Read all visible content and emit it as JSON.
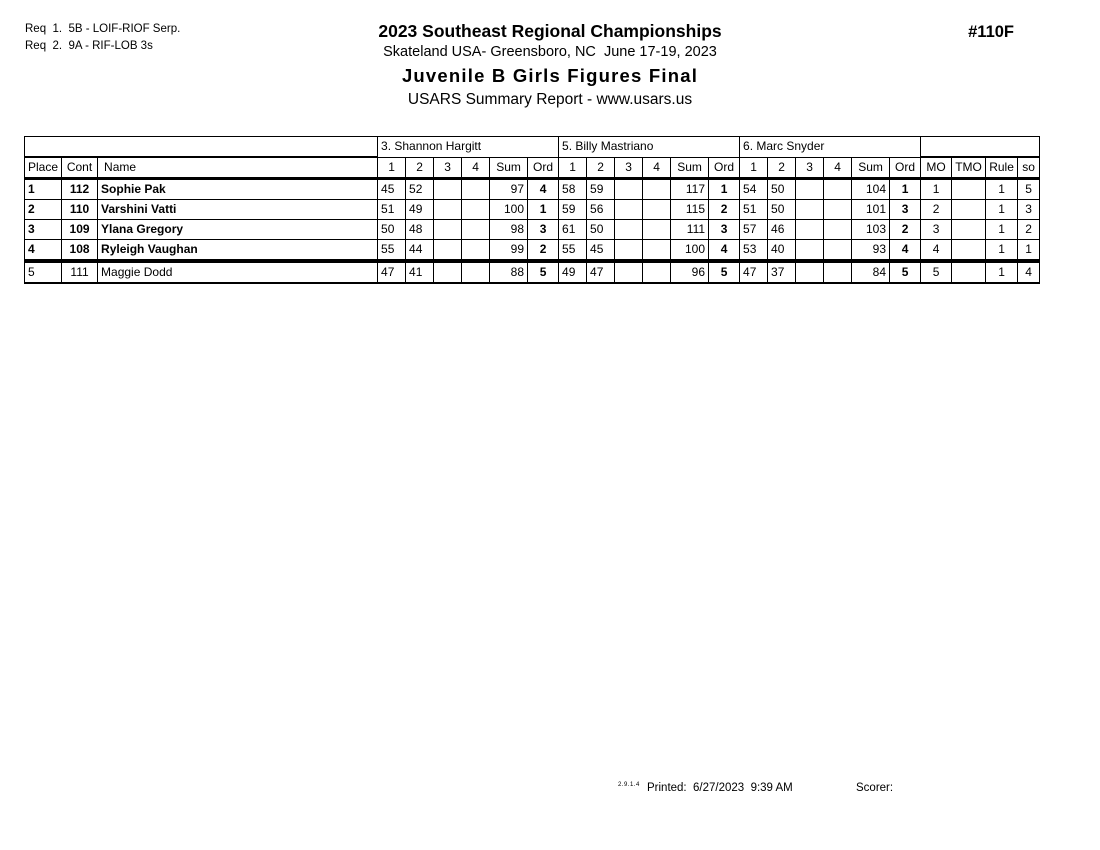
{
  "page": {
    "req_lines": [
      "Req  1.  5B - LOIF-RIOF Serp.",
      "Req  2.  9A - RIF-LOB 3s"
    ],
    "title": "2023 Southeast Regional Championships",
    "venue_date": "Skateland USA- Greensboro, NC  June 17-19, 2023",
    "event_title": "Juvenile B Girls Figures Final",
    "report_line": "USARS Summary Report - www.usars.us",
    "event_number": "#110F",
    "footer": {
      "version": "2.9.1.4",
      "printed": "Printed:  6/27/2023  9:39 AM",
      "scorer_label": "Scorer:"
    }
  },
  "table": {
    "left_headers": [
      "Place",
      "Cont",
      "Name"
    ],
    "judges": [
      {
        "label": "3.  Shannon Hargitt"
      },
      {
        "label": "5.  Billy Mastriano"
      },
      {
        "label": "6.  Marc Snyder"
      }
    ],
    "judge_subheaders": [
      "1",
      "2",
      "3",
      "4",
      "Sum",
      "Ord"
    ],
    "right_headers": [
      "MO",
      "TMO",
      "Rule",
      "so"
    ],
    "rows": [
      {
        "place": "1",
        "cont": "112",
        "name": "Sophie Pak",
        "bold": true,
        "cut_above": false,
        "judges": [
          {
            "s": [
              "45",
              "52",
              "",
              ""
            ],
            "sum": "97",
            "ord": "4"
          },
          {
            "s": [
              "58",
              "59",
              "",
              ""
            ],
            "sum": "117",
            "ord": "1"
          },
          {
            "s": [
              "54",
              "50",
              "",
              ""
            ],
            "sum": "104",
            "ord": "1"
          }
        ],
        "mo": "1",
        "tmo": "",
        "rule": "1",
        "so": "5"
      },
      {
        "place": "2",
        "cont": "110",
        "name": "Varshini Vatti",
        "bold": true,
        "cut_above": false,
        "judges": [
          {
            "s": [
              "51",
              "49",
              "",
              ""
            ],
            "sum": "100",
            "ord": "1"
          },
          {
            "s": [
              "59",
              "56",
              "",
              ""
            ],
            "sum": "115",
            "ord": "2"
          },
          {
            "s": [
              "51",
              "50",
              "",
              ""
            ],
            "sum": "101",
            "ord": "3"
          }
        ],
        "mo": "2",
        "tmo": "",
        "rule": "1",
        "so": "3"
      },
      {
        "place": "3",
        "cont": "109",
        "name": "Ylana Gregory",
        "bold": true,
        "cut_above": false,
        "judges": [
          {
            "s": [
              "50",
              "48",
              "",
              ""
            ],
            "sum": "98",
            "ord": "3"
          },
          {
            "s": [
              "61",
              "50",
              "",
              ""
            ],
            "sum": "111",
            "ord": "3"
          },
          {
            "s": [
              "57",
              "46",
              "",
              ""
            ],
            "sum": "103",
            "ord": "2"
          }
        ],
        "mo": "3",
        "tmo": "",
        "rule": "1",
        "so": "2"
      },
      {
        "place": "4",
        "cont": "108",
        "name": "Ryleigh Vaughan",
        "bold": true,
        "cut_above": false,
        "judges": [
          {
            "s": [
              "55",
              "44",
              "",
              ""
            ],
            "sum": "99",
            "ord": "2"
          },
          {
            "s": [
              "55",
              "45",
              "",
              ""
            ],
            "sum": "100",
            "ord": "4"
          },
          {
            "s": [
              "53",
              "40",
              "",
              ""
            ],
            "sum": "93",
            "ord": "4"
          }
        ],
        "mo": "4",
        "tmo": "",
        "rule": "1",
        "so": "1"
      },
      {
        "place": "5",
        "cont": "111",
        "name": "Maggie Dodd",
        "bold": false,
        "cut_above": true,
        "judges": [
          {
            "s": [
              "47",
              "41",
              "",
              ""
            ],
            "sum": "88",
            "ord": "5"
          },
          {
            "s": [
              "49",
              "47",
              "",
              ""
            ],
            "sum": "96",
            "ord": "5"
          },
          {
            "s": [
              "47",
              "37",
              "",
              ""
            ],
            "sum": "84",
            "ord": "5"
          }
        ],
        "mo": "5",
        "tmo": "",
        "rule": "1",
        "so": "4"
      }
    ]
  }
}
